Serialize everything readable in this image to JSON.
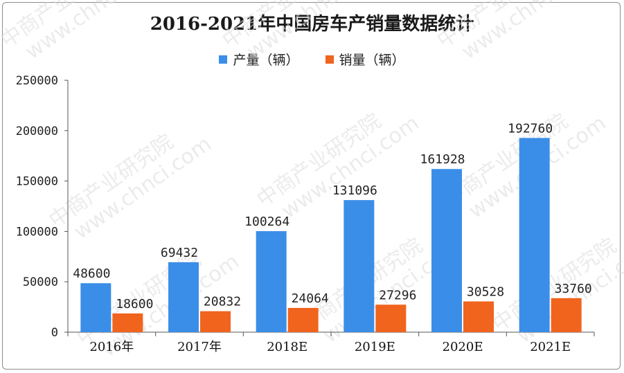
{
  "chart_data": {
    "type": "bar",
    "title": "2016-2021年中国房车产销量数据统计",
    "categories": [
      "2016年",
      "2017年",
      "2018E",
      "2019E",
      "2020E",
      "2021E"
    ],
    "series": [
      {
        "name": "产量（辆）",
        "color": "#3b8ee8",
        "values": [
          48600,
          69432,
          100264,
          131096,
          161928,
          192760
        ]
      },
      {
        "name": "销量（辆）",
        "color": "#f0641e",
        "values": [
          18600,
          20832,
          24064,
          27296,
          30528,
          33760
        ]
      }
    ],
    "ylim": [
      0,
      250000
    ],
    "yticks": [
      0,
      50000,
      100000,
      150000,
      200000,
      250000
    ],
    "legend_position": "top",
    "grid": false
  },
  "watermark": {
    "text": "中商产业研究院",
    "url": "www.chnci.com"
  }
}
